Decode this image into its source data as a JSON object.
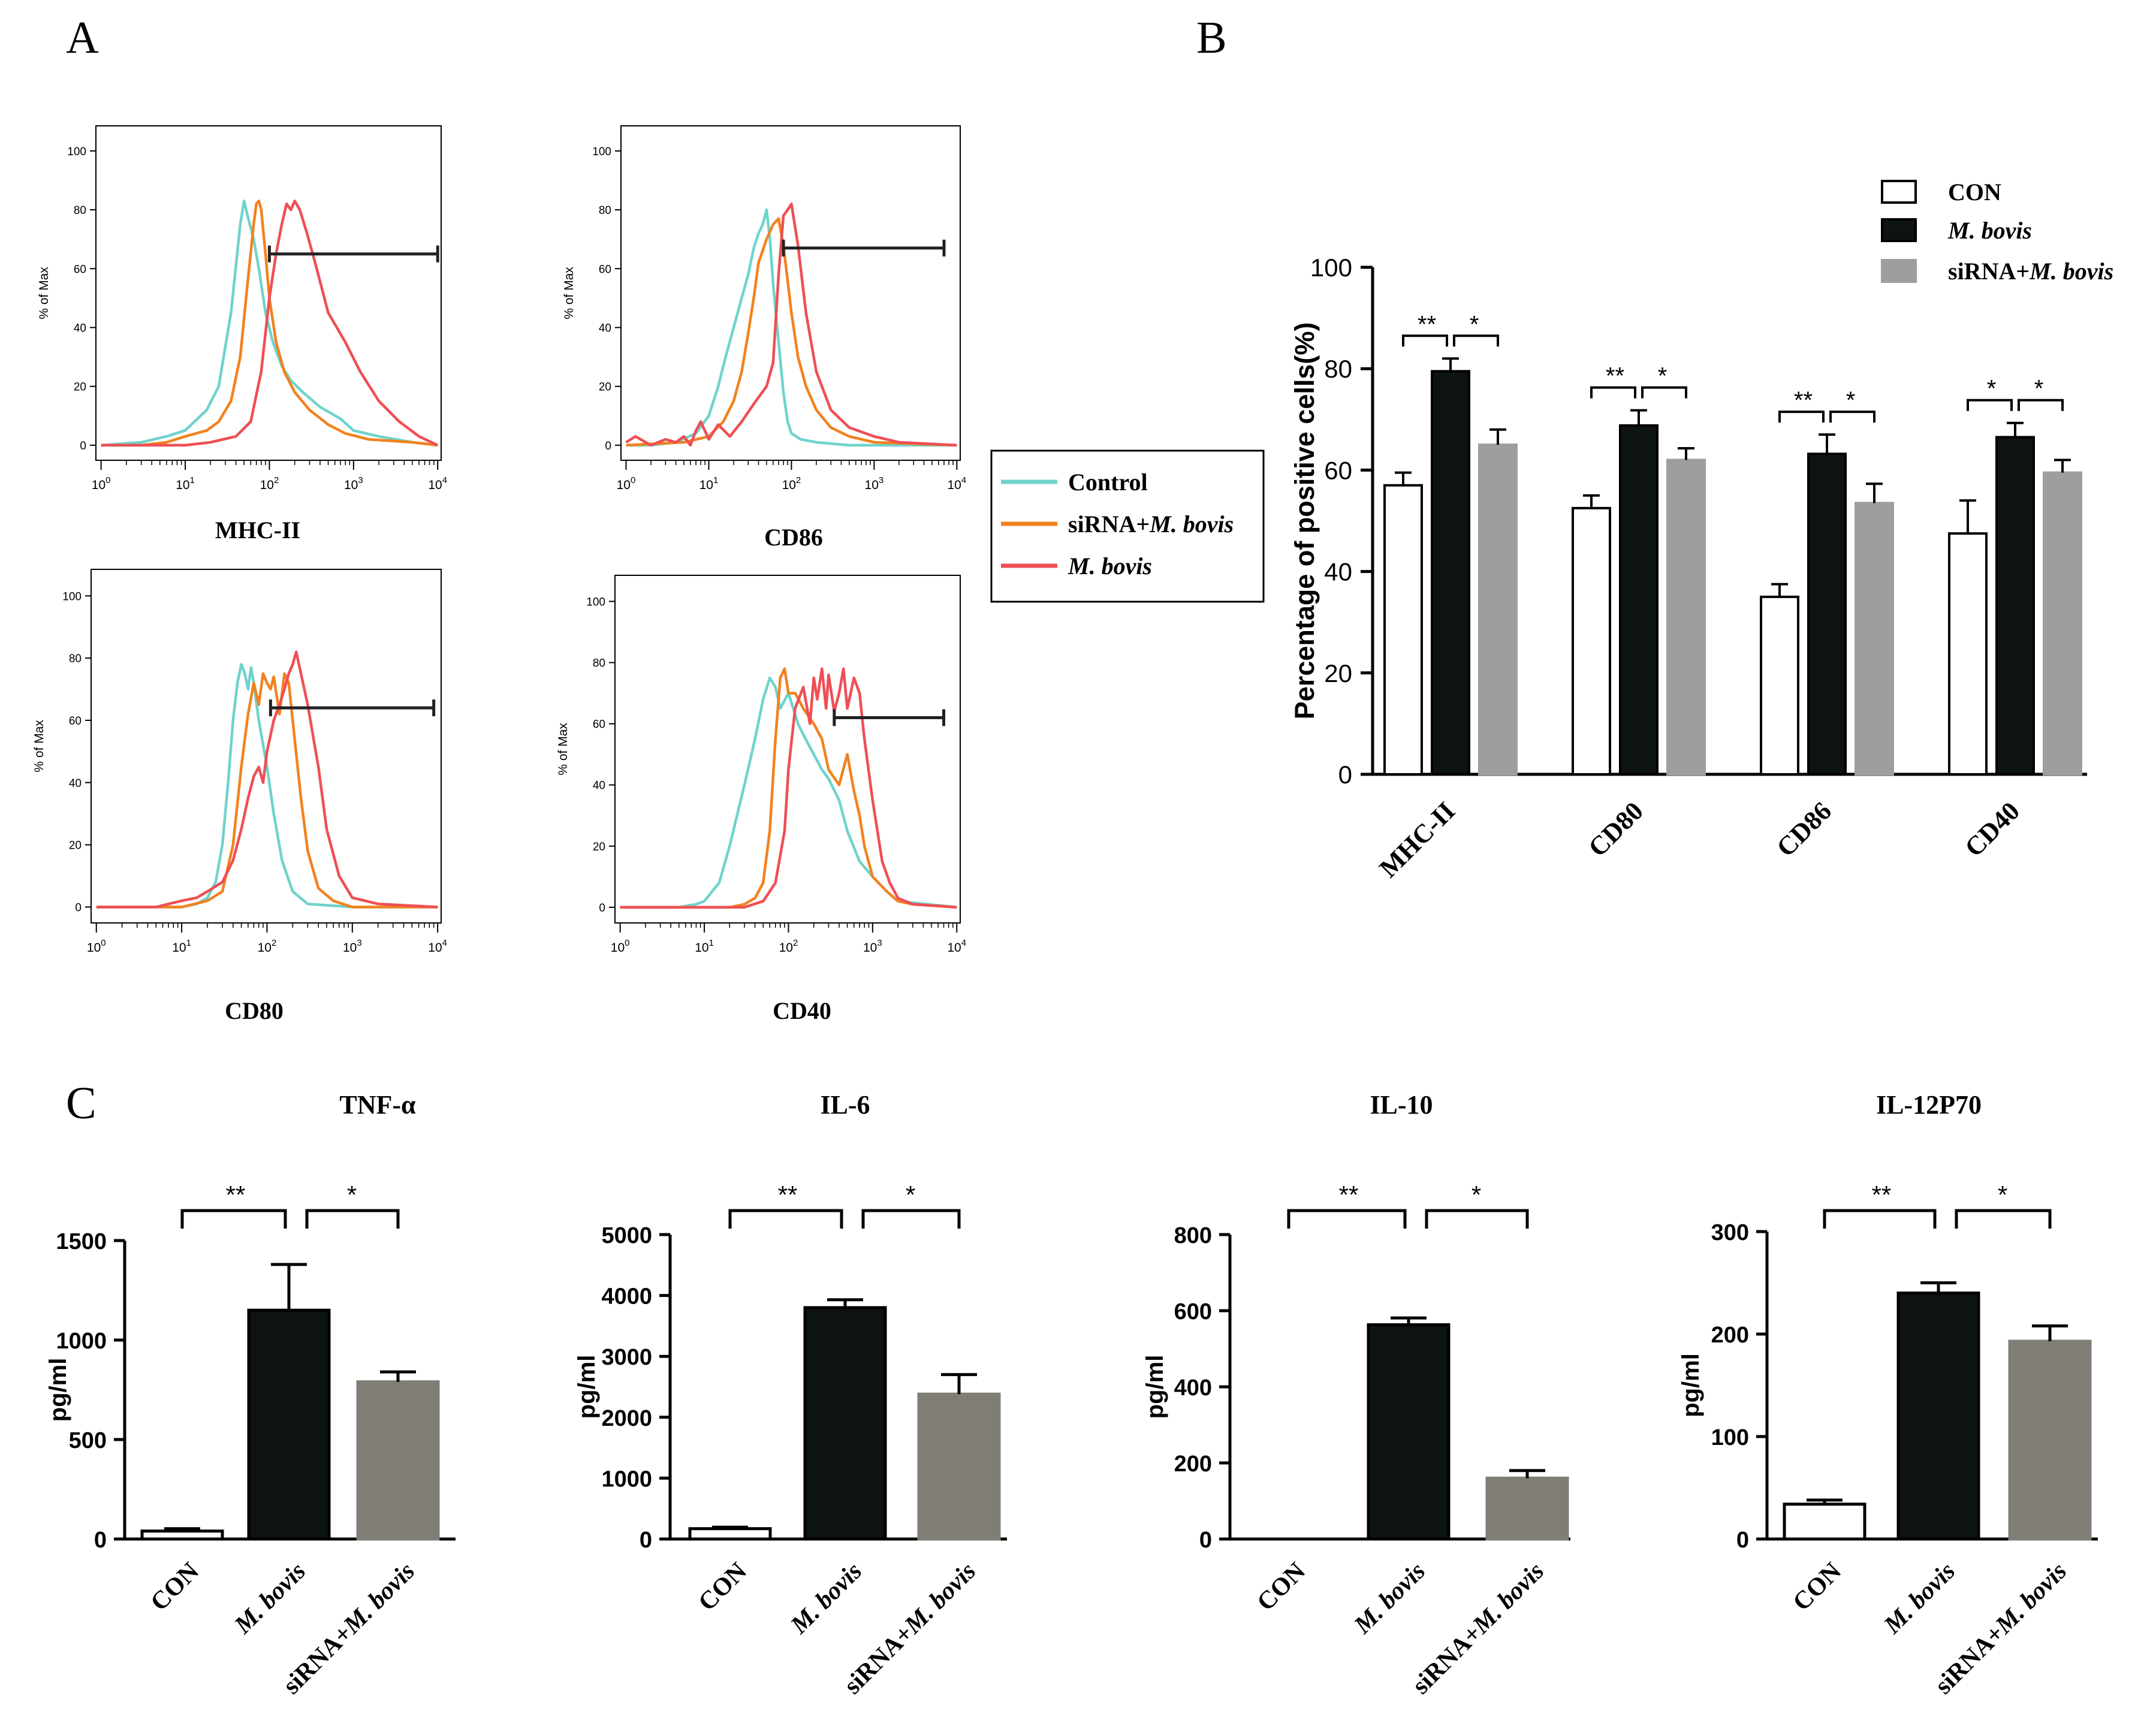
{
  "panel_labels": {
    "a": "A",
    "b": "B",
    "c": "C"
  },
  "colors": {
    "control": "#6fd3cc",
    "sirna": "#f2821f",
    "mbovis": "#ee4f55",
    "black_bar": "#0d130f",
    "gray_bar_b": "#a09d9d",
    "gray_bar_c": "#807d76",
    "white_bar": "#ffffff"
  },
  "legend_a": {
    "control": "Control",
    "sirna_prefix": "siRNA+",
    "sirna_it": "M. bovis",
    "mbovis": "M. bovis"
  },
  "legend_b": {
    "con": "CON",
    "mbovis": "M. bovis",
    "sirna_prefix": "siRNA+",
    "sirna_it": "M. bovis"
  },
  "chart_data": [
    {
      "type": "line",
      "panel": "A",
      "marker": "MHC-II",
      "ylabel": "% of Max",
      "xscale": "log",
      "xlim": [
        1,
        10000
      ],
      "ylim": [
        0,
        100
      ],
      "yticks": [
        "0",
        "20",
        "40",
        "60",
        "80",
        "100"
      ],
      "gate": {
        "x": [
          100,
          10000
        ],
        "y": 65
      },
      "series": [
        {
          "name": "Control",
          "x": [
            1,
            3,
            6,
            10,
            18,
            25,
            35,
            45,
            50,
            55,
            65,
            75,
            90,
            110,
            140,
            180,
            250,
            400,
            700,
            1000,
            2000,
            5000,
            10000
          ],
          "y": [
            0,
            1,
            3,
            5,
            12,
            20,
            45,
            75,
            83,
            78,
            70,
            60,
            45,
            35,
            27,
            22,
            18,
            13,
            9,
            5,
            3,
            1,
            0
          ]
        },
        {
          "name": "siRNA+M. bovis",
          "x": [
            1,
            3,
            6,
            10,
            18,
            25,
            35,
            45,
            55,
            65,
            70,
            75,
            80,
            90,
            100,
            120,
            150,
            200,
            300,
            500,
            800,
            1500,
            5000,
            10000
          ],
          "y": [
            0,
            0,
            1,
            3,
            5,
            8,
            15,
            30,
            55,
            75,
            82,
            83,
            80,
            65,
            50,
            35,
            25,
            18,
            12,
            7,
            4,
            2,
            1,
            0
          ]
        },
        {
          "name": "M. bovis",
          "x": [
            1,
            10,
            20,
            40,
            60,
            80,
            100,
            120,
            140,
            160,
            180,
            200,
            230,
            280,
            350,
            500,
            800,
            1200,
            2000,
            3500,
            6000,
            10000
          ],
          "y": [
            0,
            0,
            1,
            3,
            8,
            25,
            50,
            65,
            75,
            82,
            80,
            83,
            80,
            72,
            62,
            45,
            35,
            25,
            15,
            8,
            3,
            0
          ]
        }
      ]
    },
    {
      "type": "line",
      "panel": "A",
      "marker": "CD86",
      "ylabel": "% of Max",
      "xscale": "log",
      "xlim": [
        1,
        10000
      ],
      "ylim": [
        0,
        100
      ],
      "yticks": [
        "0",
        "20",
        "40",
        "60",
        "80",
        "100"
      ],
      "gate": {
        "x": [
          80,
          7000
        ],
        "y": 67
      },
      "series": [
        {
          "name": "Control",
          "x": [
            1,
            2,
            4,
            7,
            10,
            13,
            16,
            20,
            25,
            30,
            35,
            40,
            45,
            50,
            55,
            60,
            70,
            80,
            90,
            100,
            130,
            200,
            500,
            10000
          ],
          "y": [
            0,
            0,
            1,
            4,
            10,
            20,
            30,
            40,
            50,
            58,
            67,
            72,
            75,
            80,
            70,
            55,
            35,
            18,
            8,
            4,
            2,
            1,
            0,
            0
          ]
        },
        {
          "name": "siRNA+M. bovis",
          "x": [
            1,
            5,
            10,
            15,
            20,
            25,
            30,
            35,
            40,
            50,
            60,
            70,
            80,
            100,
            120,
            150,
            200,
            300,
            500,
            1000,
            10000
          ],
          "y": [
            0,
            1,
            3,
            8,
            15,
            25,
            38,
            50,
            62,
            70,
            75,
            77,
            68,
            45,
            30,
            20,
            12,
            6,
            3,
            1,
            0
          ]
        },
        {
          "name": "M. bovis",
          "x": [
            1,
            1.3,
            2,
            3,
            4,
            5,
            6,
            7,
            8,
            10,
            13,
            18,
            25,
            35,
            50,
            60,
            70,
            80,
            90,
            100,
            120,
            150,
            200,
            300,
            500,
            1000,
            2000,
            10000
          ],
          "y": [
            1,
            3,
            0,
            2,
            1,
            3,
            0,
            5,
            8,
            2,
            7,
            3,
            8,
            14,
            20,
            28,
            58,
            78,
            80,
            82,
            68,
            45,
            25,
            12,
            6,
            3,
            1,
            0
          ]
        }
      ]
    },
    {
      "type": "line",
      "panel": "A",
      "marker": "CD80",
      "ylabel": "% of Max",
      "xscale": "log",
      "xlim": [
        1,
        10000
      ],
      "ylim": [
        0,
        100
      ],
      "yticks": [
        "0",
        "20",
        "40",
        "60",
        "80",
        "100"
      ],
      "gate": {
        "x": [
          110,
          9000
        ],
        "y": 64
      },
      "series": [
        {
          "name": "Control",
          "x": [
            1,
            10,
            15,
            20,
            25,
            30,
            35,
            40,
            45,
            50,
            55,
            60,
            65,
            70,
            80,
            100,
            120,
            150,
            200,
            300,
            1000,
            10000
          ],
          "y": [
            0,
            0,
            1,
            3,
            8,
            20,
            40,
            60,
            72,
            78,
            75,
            70,
            77,
            72,
            60,
            45,
            30,
            15,
            5,
            1,
            0,
            0
          ]
        },
        {
          "name": "siRNA+M. bovis",
          "x": [
            1,
            10,
            20,
            30,
            40,
            50,
            60,
            70,
            80,
            90,
            100,
            110,
            120,
            140,
            160,
            180,
            200,
            250,
            300,
            400,
            600,
            1000,
            10000
          ],
          "y": [
            0,
            0,
            2,
            5,
            20,
            45,
            62,
            72,
            65,
            75,
            72,
            70,
            74,
            62,
            75,
            72,
            60,
            35,
            18,
            6,
            2,
            0,
            0
          ]
        },
        {
          "name": "M. bovis",
          "x": [
            1,
            5,
            7,
            10,
            15,
            20,
            30,
            40,
            50,
            60,
            70,
            80,
            90,
            100,
            120,
            140,
            160,
            180,
            200,
            220,
            250,
            300,
            400,
            500,
            700,
            1000,
            2000,
            10000
          ],
          "y": [
            0,
            0,
            1,
            2,
            3,
            5,
            8,
            15,
            25,
            35,
            42,
            45,
            40,
            50,
            60,
            65,
            70,
            75,
            78,
            82,
            75,
            65,
            45,
            25,
            10,
            3,
            1,
            0
          ]
        }
      ]
    },
    {
      "type": "line",
      "panel": "A",
      "marker": "CD40",
      "ylabel": "% of Max",
      "xscale": "log",
      "xlim": [
        1,
        10000
      ],
      "ylim": [
        0,
        100
      ],
      "yticks": [
        "0",
        "20",
        "40",
        "60",
        "80",
        "100"
      ],
      "gate": {
        "x": [
          350,
          7000
        ],
        "y": 62
      },
      "series": [
        {
          "name": "Control",
          "x": [
            1,
            5,
            8,
            10,
            15,
            20,
            30,
            40,
            50,
            60,
            70,
            80,
            100,
            130,
            160,
            200,
            250,
            300,
            400,
            500,
            700,
            1000,
            1500,
            2000,
            10000
          ],
          "y": [
            0,
            0,
            1,
            2,
            8,
            20,
            40,
            55,
            68,
            75,
            72,
            65,
            70,
            60,
            55,
            50,
            45,
            42,
            35,
            25,
            15,
            10,
            5,
            2,
            0
          ]
        },
        {
          "name": "siRNA+M. bovis",
          "x": [
            1,
            20,
            30,
            40,
            50,
            60,
            70,
            80,
            90,
            100,
            120,
            150,
            200,
            250,
            300,
            400,
            500,
            600,
            700,
            800,
            1000,
            1500,
            2000,
            3000,
            10000
          ],
          "y": [
            0,
            0,
            1,
            3,
            8,
            25,
            55,
            75,
            78,
            70,
            70,
            65,
            60,
            55,
            45,
            40,
            50,
            38,
            30,
            20,
            10,
            5,
            2,
            1,
            0
          ]
        },
        {
          "name": "M. bovis",
          "x": [
            1,
            30,
            50,
            70,
            90,
            100,
            120,
            150,
            180,
            200,
            220,
            250,
            280,
            300,
            350,
            400,
            450,
            500,
            600,
            700,
            800,
            1000,
            1300,
            1600,
            2000,
            3000,
            10000
          ],
          "y": [
            0,
            0,
            2,
            8,
            25,
            45,
            65,
            72,
            60,
            75,
            68,
            78,
            65,
            76,
            64,
            70,
            78,
            65,
            75,
            70,
            55,
            35,
            15,
            8,
            3,
            1,
            0
          ]
        }
      ]
    },
    {
      "type": "bar",
      "panel": "B",
      "ylabel": "Percentage of positive cells(%)",
      "ylim": [
        0,
        100
      ],
      "yticks": [
        "0",
        "20",
        "40",
        "60",
        "80",
        "100"
      ],
      "categories": [
        "MHC-II",
        "CD80",
        "CD86",
        "CD40"
      ],
      "series": [
        {
          "name": "CON",
          "values": [
            57,
            52.5,
            35,
            47.5
          ],
          "errors": [
            2.5,
            2.5,
            2.5,
            6.5
          ]
        },
        {
          "name": "M. bovis",
          "values": [
            79.5,
            68.8,
            63.2,
            66.5
          ],
          "errors": [
            2.5,
            3,
            3.8,
            2.8
          ]
        },
        {
          "name": "siRNA+M. bovis",
          "values": [
            65,
            62,
            53.5,
            59.5
          ],
          "errors": [
            3,
            2.3,
            3.8,
            2.5
          ]
        }
      ],
      "significance": [
        {
          "left": "**",
          "right": "*"
        },
        {
          "left": "**",
          "right": "*"
        },
        {
          "left": "**",
          "right": "*"
        },
        {
          "left": "*",
          "right": "*"
        }
      ]
    },
    {
      "type": "bar",
      "panel": "C",
      "title": "TNF-α",
      "ylabel": "pg/ml",
      "ylim": [
        0,
        1500
      ],
      "yticks": [
        "0",
        "500",
        "1000",
        "1500"
      ],
      "categories": [
        "CON",
        "M. bovis",
        "siRNA+M. bovis"
      ],
      "values": [
        40,
        1150,
        790
      ],
      "errors": [
        12,
        230,
        50
      ],
      "significance": {
        "left": "**",
        "right": "*"
      }
    },
    {
      "type": "bar",
      "panel": "C",
      "title": "IL-6",
      "ylabel": "pg/ml",
      "ylim": [
        0,
        5000
      ],
      "yticks": [
        "0",
        "1000",
        "2000",
        "3000",
        "4000",
        "5000"
      ],
      "categories": [
        "CON",
        "M. bovis",
        "siRNA+M. bovis"
      ],
      "values": [
        170,
        3800,
        2380
      ],
      "errors": [
        25,
        130,
        320
      ],
      "significance": {
        "left": "**",
        "right": "*"
      }
    },
    {
      "type": "bar",
      "panel": "C",
      "title": "IL-10",
      "ylabel": "pg/ml",
      "ylim": [
        0,
        800
      ],
      "yticks": [
        "0",
        "200",
        "400",
        "600",
        "800"
      ],
      "categories": [
        "CON",
        "M. bovis",
        "siRNA+M. bovis"
      ],
      "values": [
        0,
        563,
        160
      ],
      "errors": [
        0,
        18,
        20
      ],
      "significance": {
        "left": "**",
        "right": "*"
      }
    },
    {
      "type": "bar",
      "panel": "C",
      "title": "IL-12P70",
      "ylabel": "pg/ml",
      "ylim": [
        0,
        300
      ],
      "yticks": [
        "0",
        "100",
        "200",
        "300"
      ],
      "categories": [
        "CON",
        "M. bovis",
        "siRNA+M. bovis"
      ],
      "values": [
        34,
        240,
        193
      ],
      "errors": [
        4,
        10,
        15
      ],
      "significance": {
        "left": "**",
        "right": "*"
      }
    }
  ]
}
